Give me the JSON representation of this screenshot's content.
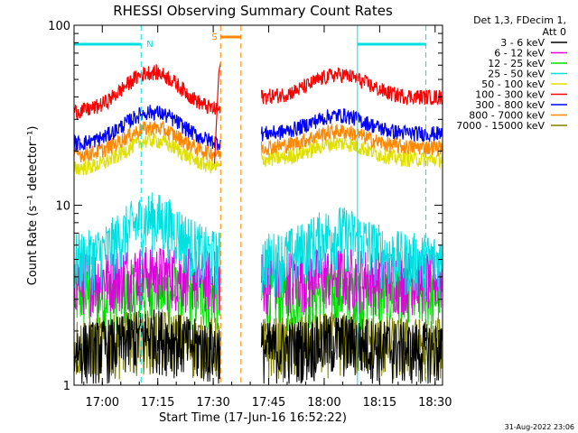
{
  "chart_data": {
    "type": "line",
    "title": "RHESSI Observing Summary Count Rates",
    "xlabel": "Start Time (17-Jun-16 16:52:22)",
    "ylabel": "Count Rate (s⁻¹ detector⁻¹)",
    "y_scale": "log",
    "ylim": [
      1,
      100
    ],
    "xlim": [
      "16:52:22",
      "18:32:00"
    ],
    "x_ticks": [
      "17:00",
      "17:15",
      "17:30",
      "17:45",
      "18:00",
      "18:15",
      "18:30"
    ],
    "y_ticks": [
      "1",
      "10",
      "100"
    ],
    "grid": false,
    "legend_title": [
      "Det 1,3, FDecim 1,",
      "Att 0"
    ],
    "legend_position": "right",
    "series": [
      {
        "name": "3 - 6 keV",
        "color": "#000000",
        "level_before": 1.6,
        "peak": 1.9,
        "level_after": 1.6
      },
      {
        "name": "6 - 12 keV",
        "color": "#e000e0",
        "level_before": 4.0,
        "peak": 4.3,
        "level_after": 4.0
      },
      {
        "name": "12 - 25 keV",
        "color": "#00e000",
        "level_before": 3.2,
        "peak": 3.4,
        "level_after": 3.2
      },
      {
        "name": "25 - 50 keV",
        "color": "#00e0e0",
        "level_before": 5.0,
        "peak": 8.5,
        "level_after": 5.0
      },
      {
        "name": "50 - 100 keV",
        "color": "#e0e000",
        "level_before": 16,
        "peak": 23,
        "level_after": 18
      },
      {
        "name": "100 - 300 keV",
        "color": "#ff0000",
        "level_before": 33,
        "peak": 55,
        "level_after": 40
      },
      {
        "name": "300 - 800 keV",
        "color": "#0000ff",
        "level_before": 22,
        "peak": 33,
        "level_after": 25
      },
      {
        "name": "800 - 7000 keV",
        "color": "#ff8800",
        "level_before": 19,
        "peak": 27,
        "level_after": 21
      },
      {
        "name": "7000 - 15000 keV",
        "color": "#808000",
        "level_before": 1.7,
        "peak": 1.9,
        "level_after": 1.7
      }
    ],
    "annotations": [
      {
        "label": "N",
        "color": "#00e0e0",
        "type": "night",
        "start": "16:52:22",
        "end": "17:10:30"
      },
      {
        "label": "",
        "color": "#00e0e0",
        "type": "night",
        "start": "18:09:00",
        "end": "18:27:30"
      },
      {
        "label": "S",
        "color": "#ff8800",
        "type": "saa",
        "start": "17:32:00",
        "end": "17:37:30"
      }
    ],
    "data_gap": [
      "17:32:00",
      "17:43:00"
    ]
  },
  "footer": {
    "timestamp": "31-Aug-2022 23:06"
  }
}
